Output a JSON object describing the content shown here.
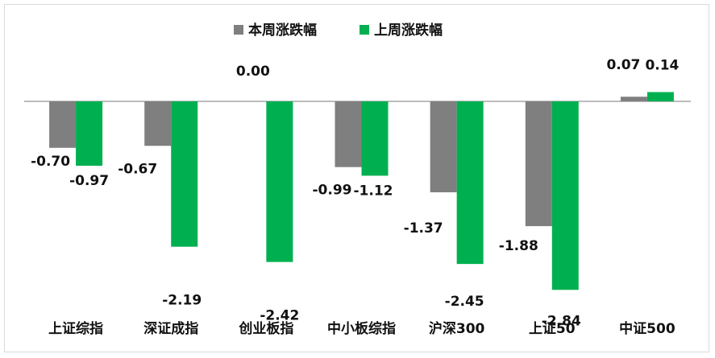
{
  "chart_data": {
    "type": "bar",
    "title": "",
    "xlabel": "",
    "ylabel": "",
    "categories": [
      "上证综指",
      "深证成指",
      "创业板指",
      "中小板综指",
      "沪深300",
      "上证50",
      "中证500"
    ],
    "series": [
      {
        "name": "本周涨跌幅",
        "color": "#7f7f7f",
        "values": [
          -0.7,
          -0.67,
          0.0,
          -0.99,
          -1.37,
          -1.88,
          0.07
        ]
      },
      {
        "name": "上周涨跌幅",
        "color": "#00b050",
        "values": [
          -0.97,
          -2.19,
          -2.42,
          -1.12,
          -2.45,
          -2.84,
          0.14
        ]
      }
    ],
    "data_labels": [
      [
        "-0.70",
        "-0.67",
        "0.00",
        "-0.99",
        "-1.37",
        "-1.88",
        "0.07"
      ],
      [
        "-0.97",
        "-2.19",
        "-2.42",
        "-1.12",
        "-2.45",
        "-2.84",
        "0.14"
      ]
    ],
    "ylim": [
      -2.84,
      0.14
    ],
    "grid": false,
    "legend_position": "top"
  }
}
